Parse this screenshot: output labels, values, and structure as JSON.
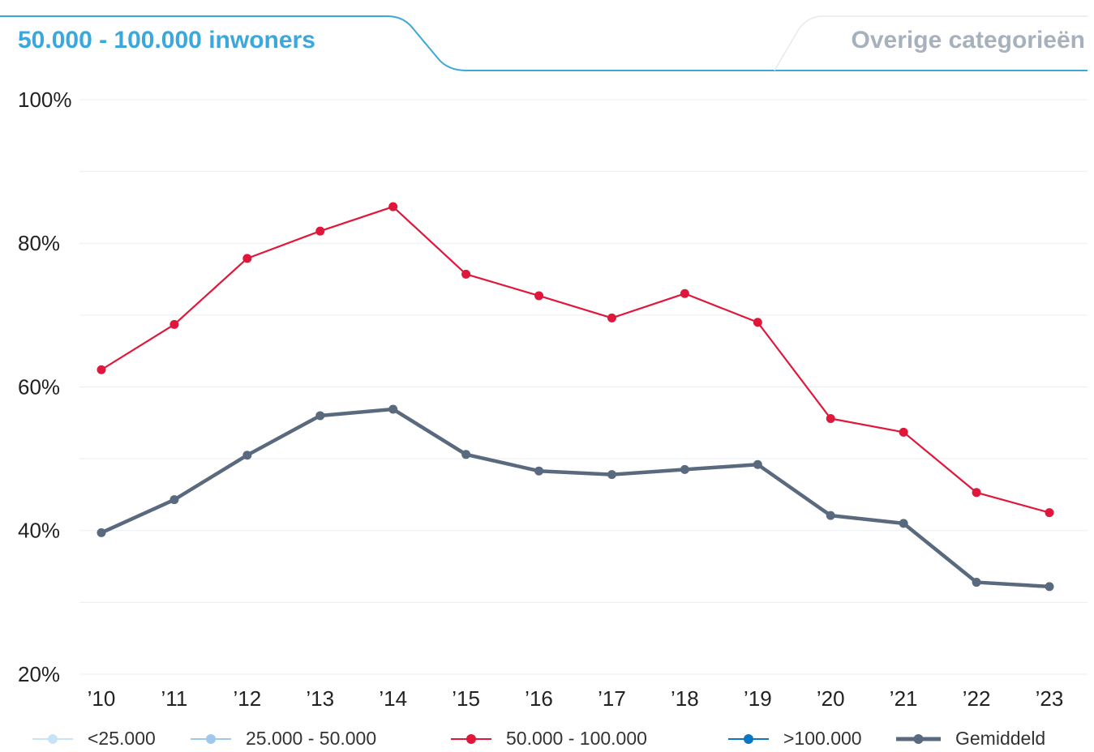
{
  "tabs": {
    "active": "50.000 - 100.000 inwoners",
    "other": "Overige categorieën"
  },
  "chart_data": {
    "type": "line",
    "categories": [
      "’10",
      "’11",
      "’12",
      "’13",
      "’14",
      "’15",
      "’16",
      "’17",
      "’18",
      "’19",
      "’20",
      "’21",
      "’22",
      "’23"
    ],
    "ylim": [
      20,
      100
    ],
    "yticks": [
      {
        "value": 20,
        "label": "20%"
      },
      {
        "value": 40,
        "label": "40%"
      },
      {
        "value": 60,
        "label": "60%"
      },
      {
        "value": 80,
        "label": "80%"
      },
      {
        "value": 100,
        "label": "100%"
      }
    ],
    "minor_yticks": [
      30,
      50,
      70,
      90
    ],
    "grid": true,
    "legend": "bottom",
    "series": [
      {
        "name": "<25.000",
        "color": "#c6e3f7",
        "visible": false
      },
      {
        "name": "25.000 - 50.000",
        "color": "#9fc8ee",
        "visible": false
      },
      {
        "name": "50.000 - 100.000",
        "color": "#e0173b",
        "values": [
          62.4,
          68.7,
          77.9,
          81.7,
          85.1,
          75.7,
          72.7,
          69.6,
          73.0,
          69.0,
          55.6,
          53.7,
          45.3,
          42.5
        ]
      },
      {
        "name": ">100.000",
        "color": "#0a77c2",
        "visible": false
      },
      {
        "name": "Gemiddeld",
        "color": "#5a6a7e",
        "bold": true,
        "values": [
          39.7,
          44.3,
          50.5,
          56.0,
          56.9,
          50.6,
          48.3,
          47.8,
          48.5,
          49.2,
          42.1,
          41.0,
          32.8,
          32.2
        ]
      }
    ]
  }
}
